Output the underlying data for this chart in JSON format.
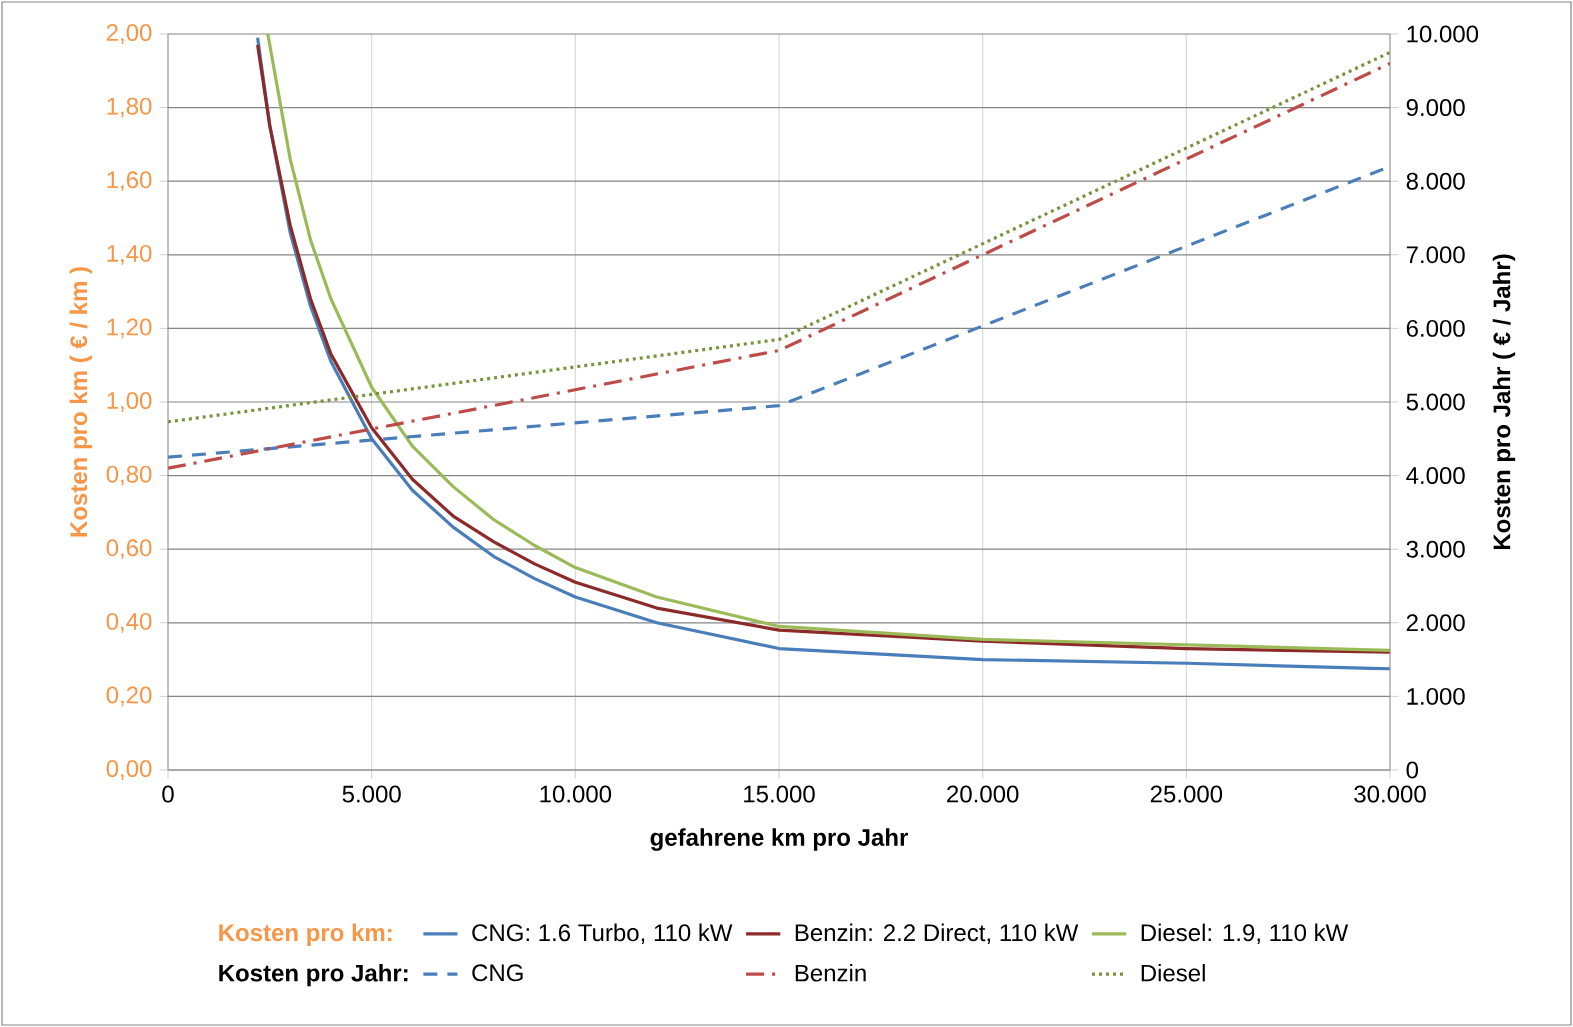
{
  "chart_data": {
    "type": "line",
    "xlabel": "gefahrene km pro Jahr",
    "ylabel": "Kosten pro km ( € / km )",
    "y2label": "Kosten pro Jahr ( € / Jahr)",
    "annotations": [
      "Kosten pro km:",
      "Kosten pro Jahr:"
    ],
    "xlim": [
      0,
      30000
    ],
    "ylim": [
      0,
      2
    ],
    "y2lim": [
      0,
      10000
    ],
    "xticks": [
      0,
      {
        "value": 5000,
        "label": "5.000"
      },
      {
        "value": 10000,
        "label": "10.000"
      },
      {
        "value": 15000,
        "label": "15.000"
      },
      {
        "value": 20000,
        "label": "20.000"
      },
      {
        "value": 25000,
        "label": "25.000"
      },
      {
        "value": 30000,
        "label": "30.000"
      }
    ],
    "yticks": [
      {
        "value": 0,
        "label": "0,00"
      },
      {
        "value": 0.2,
        "label": "0,20"
      },
      {
        "value": 0.4,
        "label": "0,40"
      },
      {
        "value": 0.6,
        "label": "0,60"
      },
      {
        "value": 0.8,
        "label": "0,80"
      },
      {
        "value": 1.0,
        "label": "1,00"
      },
      {
        "value": 1.2,
        "label": "1,20"
      },
      {
        "value": 1.4,
        "label": "1,40"
      },
      {
        "value": 1.6,
        "label": "1,60"
      },
      {
        "value": 1.8,
        "label": "1,80"
      },
      {
        "value": 2.0,
        "label": "2,00"
      }
    ],
    "y2ticks": [
      0,
      {
        "value": 1000,
        "label": "1.000"
      },
      {
        "value": 2000,
        "label": "2.000"
      },
      {
        "value": 3000,
        "label": "3.000"
      },
      {
        "value": 4000,
        "label": "4.000"
      },
      {
        "value": 5000,
        "label": "5.000"
      },
      {
        "value": 6000,
        "label": "6.000"
      },
      {
        "value": 7000,
        "label": "7.000"
      },
      {
        "value": 8000,
        "label": "8.000"
      },
      {
        "value": 9000,
        "label": "9.000"
      },
      {
        "value": 10000,
        "label": "10.000"
      }
    ],
    "grid": true,
    "legend": "bottom",
    "marker": "none",
    "series": [
      {
        "name": "CNG: 1.6 Turbo, 110 kW",
        "color": "#4a7ebb",
        "line_style": "solid",
        "x": [
          2200,
          2500,
          3000,
          3500,
          4000,
          5000,
          6000,
          7000,
          8000,
          9000,
          10000,
          12000,
          15000,
          20000,
          25000,
          30000
        ],
        "values": [
          1.99,
          1.75,
          1.46,
          1.26,
          1.11,
          0.9,
          0.76,
          0.66,
          0.58,
          0.52,
          0.47,
          0.4,
          0.33,
          0.3,
          0.29,
          0.275
        ]
      },
      {
        "name": "Benzin: 2.2 Direct, 110 kW",
        "color": "#8c2a2a",
        "line_style": "solid",
        "x": [
          2200,
          2500,
          3000,
          3500,
          4000,
          5000,
          6000,
          7000,
          8000,
          9000,
          10000,
          12000,
          15000,
          20000,
          25000,
          30000
        ],
        "values": [
          1.97,
          1.75,
          1.48,
          1.28,
          1.13,
          0.93,
          0.79,
          0.69,
          0.62,
          0.56,
          0.51,
          0.44,
          0.38,
          0.35,
          0.33,
          0.32
        ]
      },
      {
        "name": "Diesel: 1.9, 110 kW",
        "color": "#9bbb59",
        "line_style": "solid",
        "x": [
          2450,
          3000,
          3500,
          4000,
          5000,
          6000,
          7000,
          8000,
          9000,
          10000,
          12000,
          15000,
          20000,
          25000,
          30000
        ],
        "values": [
          2.0,
          1.66,
          1.44,
          1.28,
          1.04,
          0.88,
          0.77,
          0.68,
          0.61,
          0.55,
          0.47,
          0.39,
          0.355,
          0.34,
          0.325
        ]
      },
      {
        "name": "CNG",
        "color": "#4a7ebb",
        "line_style": "dashed",
        "axis": "y2",
        "x": [
          0,
          15000,
          30000
        ],
        "values": [
          4250,
          4950,
          8200
        ]
      },
      {
        "name": "Benzin",
        "color": "#be4b48",
        "line_style": "dashdot",
        "axis": "y2",
        "x": [
          0,
          15000,
          30000
        ],
        "values": [
          4100,
          5700,
          9600
        ]
      },
      {
        "name": "Diesel",
        "color": "#77933c",
        "line_style": "dotted",
        "axis": "y2",
        "x": [
          0,
          15000,
          30000
        ],
        "values": [
          4730,
          5850,
          9750
        ]
      }
    ]
  }
}
